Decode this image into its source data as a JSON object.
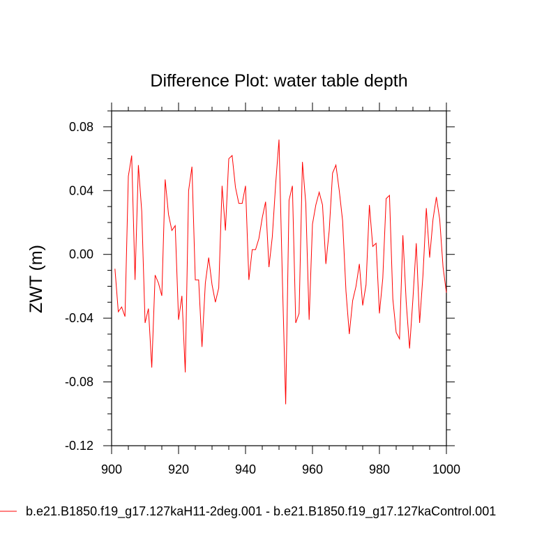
{
  "chart_data": {
    "type": "line",
    "title": "Difference Plot: water table depth",
    "xlabel": "",
    "ylabel": "ZWT  (m)",
    "xlim": [
      900,
      1000
    ],
    "ylim": [
      -0.12,
      0.09
    ],
    "xticks": [
      900,
      920,
      940,
      960,
      980,
      1000
    ],
    "xtick_labels": [
      "900",
      "920",
      "940",
      "960",
      "980",
      "1000"
    ],
    "yticks": [
      -0.12,
      -0.08,
      -0.04,
      0.0,
      0.04,
      0.08
    ],
    "ytick_labels": [
      "-0.12",
      "-0.08",
      "-0.04",
      "0.00",
      "0.04",
      "0.08"
    ],
    "grid": false,
    "legend_position": "bottom",
    "series": [
      {
        "name": "b.e21.B1850.f19_g17.127kaH11-2deg.001 - b.e21.B1850.f19_g17.127kaControl.001",
        "color": "#ff0000",
        "x": [
          901,
          902,
          903,
          904,
          905,
          906,
          907,
          908,
          909,
          910,
          911,
          912,
          913,
          914,
          915,
          916,
          917,
          918,
          919,
          920,
          921,
          922,
          923,
          924,
          925,
          926,
          927,
          928,
          929,
          930,
          931,
          932,
          933,
          934,
          935,
          936,
          937,
          938,
          939,
          940,
          941,
          942,
          943,
          944,
          945,
          946,
          947,
          948,
          949,
          950,
          951,
          952,
          953,
          954,
          955,
          956,
          957,
          958,
          959,
          960,
          961,
          962,
          963,
          964,
          965,
          966,
          967,
          968,
          969,
          970,
          971,
          972,
          973,
          974,
          975,
          976,
          977,
          978,
          979,
          980,
          981,
          982,
          983,
          984,
          985,
          986,
          987,
          988,
          989,
          990,
          991,
          992,
          993,
          994,
          995,
          996,
          997,
          998,
          999,
          1000
        ],
        "y": [
          -0.009,
          -0.036,
          -0.033,
          -0.039,
          0.049,
          0.062,
          -0.016,
          0.056,
          0.027,
          -0.043,
          -0.034,
          -0.071,
          -0.013,
          -0.018,
          -0.026,
          0.047,
          0.025,
          0.015,
          0.018,
          -0.041,
          -0.026,
          -0.074,
          0.04,
          0.055,
          -0.016,
          -0.016,
          -0.058,
          -0.018,
          -0.002,
          -0.019,
          -0.03,
          -0.021,
          0.043,
          0.015,
          0.06,
          0.062,
          0.042,
          0.032,
          0.032,
          0.043,
          -0.016,
          0.003,
          0.003,
          0.01,
          0.023,
          0.033,
          -0.008,
          0.011,
          0.044,
          0.072,
          -0.015,
          -0.094,
          0.034,
          0.043,
          -0.043,
          -0.037,
          0.058,
          0.032,
          -0.041,
          0.019,
          0.031,
          0.039,
          0.031,
          -0.006,
          0.015,
          0.051,
          0.056,
          0.04,
          0.021,
          -0.023,
          -0.05,
          -0.029,
          -0.02,
          -0.006,
          -0.032,
          -0.019,
          0.031,
          0.005,
          0.007,
          -0.037,
          -0.015,
          0.035,
          0.037,
          -0.028,
          -0.049,
          -0.053,
          0.012,
          -0.03,
          -0.059,
          -0.028,
          0.007,
          -0.043,
          -0.013,
          0.029,
          -0.002,
          0.022,
          0.036,
          0.022,
          -0.008,
          -0.024
        ]
      }
    ]
  }
}
